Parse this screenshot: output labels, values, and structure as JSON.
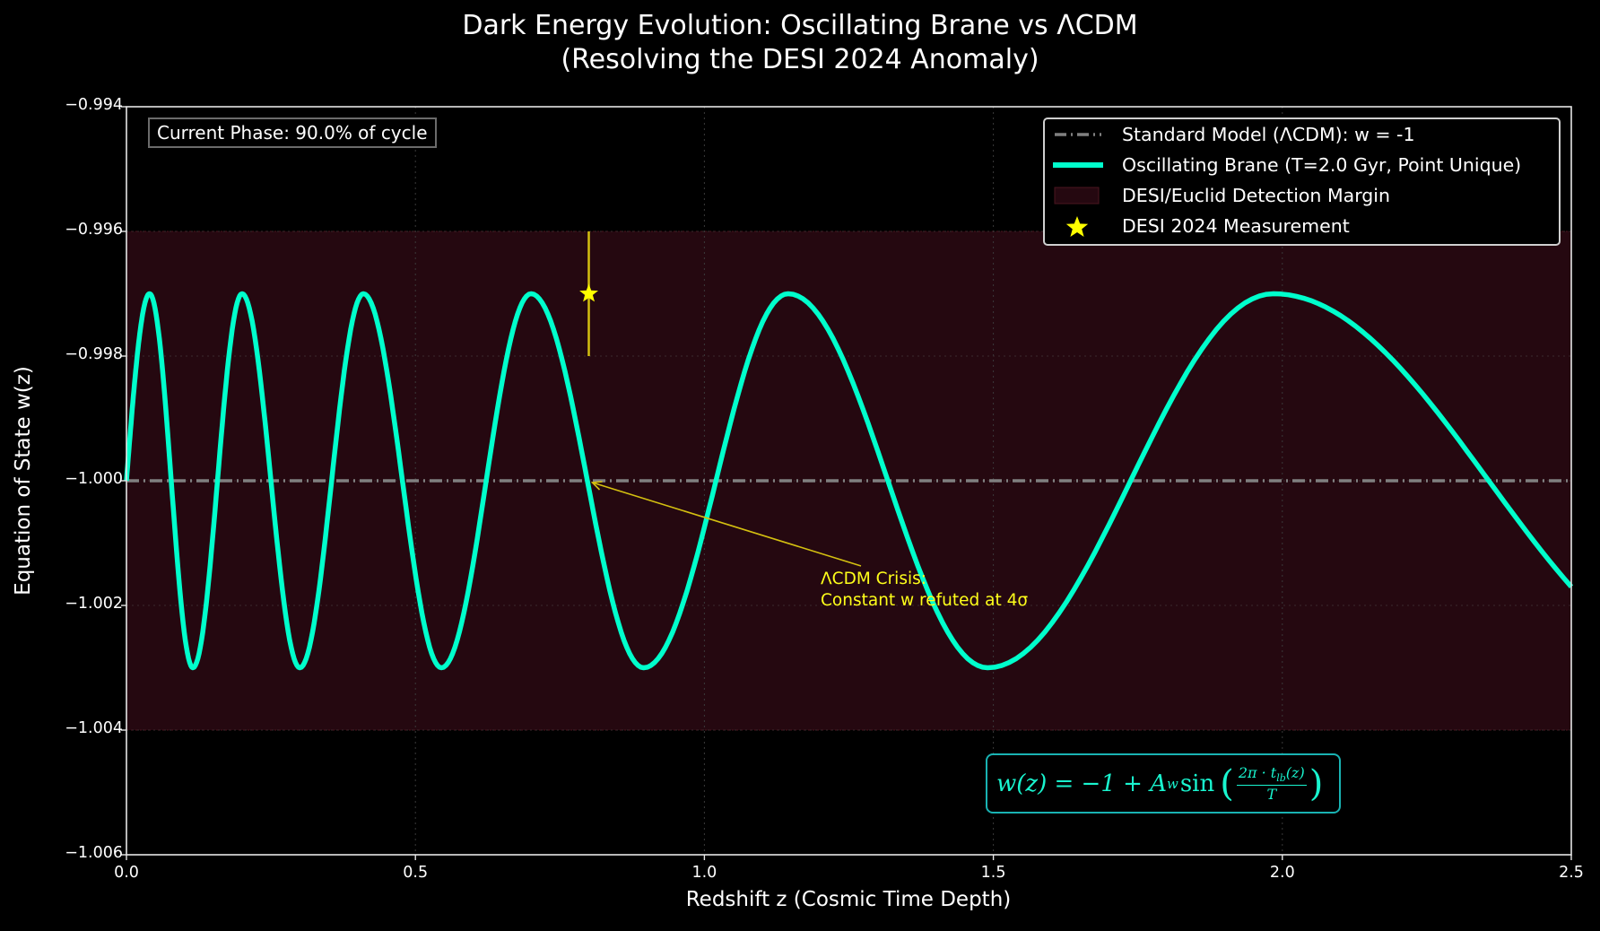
{
  "title": {
    "line1": "Dark Energy Evolution: Oscillating Brane vs ΛCDM",
    "line2": "(Resolving the DESI 2024 Anomaly)"
  },
  "axes": {
    "xlabel": "Redshift z (Cosmic Time Depth)",
    "ylabel": "Equation of State w(z)",
    "xticks": [
      "0.0",
      "0.5",
      "1.0",
      "1.5",
      "2.0",
      "2.5"
    ],
    "yticks": [
      "−0.994",
      "−0.996",
      "−0.998",
      "−1.000",
      "−1.002",
      "−1.004",
      "−1.006"
    ]
  },
  "phase_box": {
    "text": "Current Phase: 90.0% of cycle"
  },
  "legend": {
    "items": [
      {
        "label": "Standard Model (ΛCDM): w = -1",
        "symbol": "dashed-line",
        "color": "#808080"
      },
      {
        "label": "Oscillating Brane (T=2.0 Gyr, Point Unique)",
        "symbol": "solid-line",
        "color": "#00ffcc"
      },
      {
        "label": "DESI/Euclid Detection Margin",
        "symbol": "patch",
        "color": "#250810"
      },
      {
        "label": "DESI 2024 Measurement",
        "symbol": "star",
        "color": "#ffff00"
      }
    ]
  },
  "annotation": {
    "line1": "ΛCDM Crisis:",
    "line2": "Constant w refuted at 4σ",
    "color": "#ffff1a"
  },
  "formula": {
    "lhs": "w(z) = −1 + A",
    "sub": "w",
    "fn": "sin",
    "num": "2π · t",
    "num_sub": "lb",
    "num_tail": "(z)",
    "den": "T"
  },
  "colors": {
    "background": "#000000",
    "curve": "#00ffcc",
    "lcdm": "#808080",
    "band": "#250810",
    "measurement": "#ffff00",
    "formula": "#19f5cf"
  },
  "chart_data": {
    "type": "line",
    "title": "Dark Energy Evolution: Oscillating Brane vs ΛCDM (Resolving the DESI 2024 Anomaly)",
    "xlabel": "Redshift z (Cosmic Time Depth)",
    "ylabel": "Equation of State w(z)",
    "xlim": [
      0.0,
      2.5
    ],
    "ylim": [
      -1.006,
      -0.994
    ],
    "grid": true,
    "legend_position": "upper right",
    "series": [
      {
        "name": "Standard Model (ΛCDM): w = -1",
        "style": "dashed",
        "x": [
          0.0,
          2.5
        ],
        "y": [
          -1.0,
          -1.0
        ]
      },
      {
        "name": "Oscillating Brane (T=2.0 Gyr, Point Unique)",
        "style": "solid",
        "amplitude": 0.003,
        "extrema": [
          {
            "z": 0.0,
            "w": -1.0
          },
          {
            "z": 0.04,
            "w": -0.997
          },
          {
            "z": 0.115,
            "w": -1.003
          },
          {
            "z": 0.2,
            "w": -0.997
          },
          {
            "z": 0.3,
            "w": -1.003
          },
          {
            "z": 0.41,
            "w": -0.997
          },
          {
            "z": 0.545,
            "w": -1.003
          },
          {
            "z": 0.7,
            "w": -0.997
          },
          {
            "z": 0.895,
            "w": -1.003
          },
          {
            "z": 1.145,
            "w": -0.997
          },
          {
            "z": 1.49,
            "w": -1.003
          },
          {
            "z": 1.985,
            "w": -0.997
          },
          {
            "z": 2.5,
            "w": -1.0017
          }
        ]
      },
      {
        "name": "DESI/Euclid Detection Margin",
        "style": "band",
        "y_range": [
          -1.004,
          -0.996
        ]
      },
      {
        "name": "DESI 2024 Measurement",
        "style": "errorbar",
        "x": [
          0.8
        ],
        "y": [
          -0.997
        ],
        "yerr": [
          0.001
        ]
      }
    ],
    "annotations": [
      {
        "text": "ΛCDM Crisis:\nConstant w refuted at 4σ",
        "xy": [
          0.8,
          -1.0
        ],
        "xytext": [
          1.2,
          -1.0016
        ]
      },
      {
        "text": "Current Phase: 90.0% of cycle",
        "position": "upper left"
      }
    ]
  }
}
